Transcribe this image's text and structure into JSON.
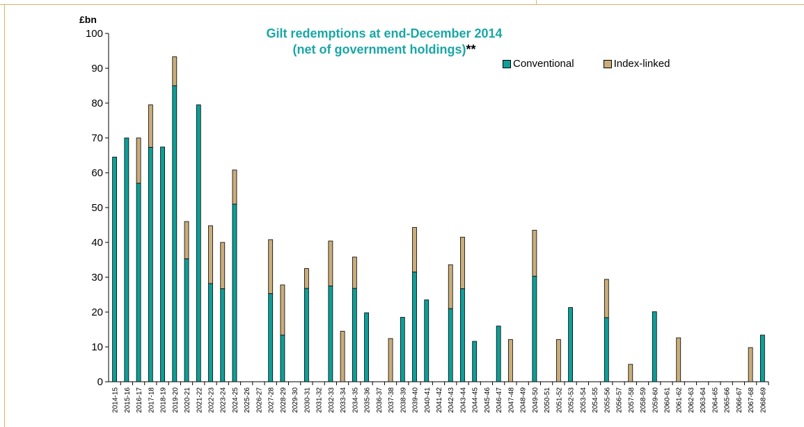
{
  "colors": {
    "conventional": "#0d9f98",
    "index_linked": "#c9ad7a",
    "title": "#1aa6a6"
  },
  "chart_data": {
    "type": "bar",
    "stacked": true,
    "title": "Gilt redemptions at end-December 2014",
    "title_line2": "(net of government holdings)",
    "title_suffix": "**",
    "ylabel": "£bn",
    "xlabel": "",
    "ylim": [
      0,
      100
    ],
    "yticks": [
      0,
      10,
      20,
      30,
      40,
      50,
      60,
      70,
      80,
      90,
      100
    ],
    "grid": false,
    "legend": "top-right",
    "categories": [
      "2014-15",
      "2015-16",
      "2016-17",
      "2017-18",
      "2018-19",
      "2019-20",
      "2020-21",
      "2021-22",
      "2022-23",
      "2023-24",
      "2024-25",
      "2025-26",
      "2026-27",
      "2027-28",
      "2028-29",
      "2029-30",
      "2030-31",
      "2031-32",
      "2032-33",
      "2033-34",
      "2034-35",
      "2035-36",
      "2036-37",
      "2037-38",
      "2038-39",
      "2039-40",
      "2040-41",
      "2041-42",
      "2042-43",
      "2043-44",
      "2044-45",
      "2045-46",
      "2046-47",
      "2047-48",
      "2048-49",
      "2049-50",
      "2050-51",
      "2051-52",
      "2052-53",
      "2053-54",
      "2054-55",
      "2055-56",
      "2056-57",
      "2057-58",
      "2058-59",
      "2059-60",
      "2060-61",
      "2061-62",
      "2062-63",
      "2063-64",
      "2064-65",
      "2065-66",
      "2066-67",
      "2067-68",
      "2068-69"
    ],
    "series": [
      {
        "name": "Conventional",
        "values": [
          64.5,
          70,
          57,
          67.3,
          67.4,
          85,
          35.3,
          79.5,
          28.2,
          26.7,
          51,
          0,
          0,
          25.3,
          13.4,
          0,
          26.8,
          0,
          27.5,
          0,
          26.8,
          19.8,
          0,
          0,
          18.5,
          31.5,
          23.5,
          0,
          21,
          26.7,
          11.6,
          0,
          16,
          0,
          0,
          30.3,
          0,
          0,
          21.3,
          0,
          0,
          18.4,
          0,
          0,
          0,
          20.1,
          0,
          0,
          0,
          0,
          0,
          0,
          0,
          0,
          13.4
        ]
      },
      {
        "name": "Index-linked",
        "values": [
          0,
          0,
          13,
          12.2,
          0,
          8.3,
          10.7,
          0,
          16.6,
          13.3,
          9.8,
          0,
          0,
          15.5,
          14.4,
          0,
          5.7,
          0,
          12.9,
          14.5,
          9,
          0,
          0,
          12.4,
          0,
          12.8,
          0,
          0,
          12.6,
          14.8,
          0,
          0,
          0,
          12.1,
          0,
          13.2,
          0,
          12.1,
          0,
          0,
          0,
          11,
          0,
          5,
          0,
          0,
          0,
          12.6,
          0,
          0,
          0,
          0,
          0,
          9.8,
          0
        ]
      }
    ]
  }
}
